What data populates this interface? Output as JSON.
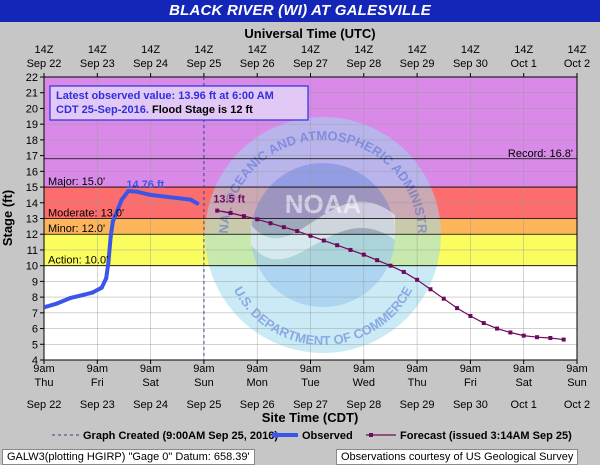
{
  "header": {
    "title": "BLACK RIVER (WI) AT GALESVILLE"
  },
  "info_box": {
    "line1": "Latest observed value: 13.96 ft at 6:00 AM",
    "line2a": "CDT 25-Sep-2016.",
    "line2b": " Flood Stage is 12 ft"
  },
  "footer": {
    "left": "GALW3(plotting HGIRP) \"Gage 0\" Datum: 658.39'",
    "right": "Observations courtesy of US Geological Survey"
  },
  "watermark": {
    "icon": "noaa-logo",
    "top_text": "NATIONAL OCEANIC AND ATMOSPHERIC ADMINISTRATION",
    "bottom_text": "U.S. DEPARTMENT OF COMMERCE",
    "center_text": "NOAA"
  },
  "colors": {
    "title_bar": "#1426b8",
    "major": "#d98ae8",
    "moderate": "#fe6d6d",
    "minor": "#fdb55c",
    "action": "#fbfd5e",
    "normal": "#ffffff",
    "observed": "#3c55e6",
    "forecast": "#6e0a5e",
    "info_text": "#2f2fe0"
  },
  "chart_data": {
    "type": "line",
    "title": "BLACK RIVER (WI) AT GALESVILLE",
    "top_axis_title": "Universal Time (UTC)",
    "xlabel": "Site Time (CDT)",
    "ylabel": "Stage (ft)",
    "ylim": [
      4,
      22
    ],
    "yticks": [
      4,
      5,
      6,
      7,
      8,
      9,
      10,
      11,
      12,
      13,
      14,
      15,
      16,
      17,
      18,
      19,
      20,
      21,
      22
    ],
    "xlim": [
      "2016-09-22 09:00",
      "2016-10-02 09:00"
    ],
    "x_ticks_bottom": [
      {
        "time": "9am",
        "day": "Thu",
        "date": "Sep 22"
      },
      {
        "time": "9am",
        "day": "Fri",
        "date": "Sep 23"
      },
      {
        "time": "9am",
        "day": "Sat",
        "date": "Sep 24"
      },
      {
        "time": "9am",
        "day": "Sun",
        "date": "Sep 25"
      },
      {
        "time": "9am",
        "day": "Mon",
        "date": "Sep 26"
      },
      {
        "time": "9am",
        "day": "Tue",
        "date": "Sep 27"
      },
      {
        "time": "9am",
        "day": "Wed",
        "date": "Sep 28"
      },
      {
        "time": "9am",
        "day": "Thu",
        "date": "Sep 29"
      },
      {
        "time": "9am",
        "day": "Fri",
        "date": "Sep 30"
      },
      {
        "time": "9am",
        "day": "Sat",
        "date": "Oct 1"
      },
      {
        "time": "9am",
        "day": "Sun",
        "date": "Oct 2"
      }
    ],
    "x_ticks_top": [
      {
        "label": "14Z",
        "date": "Sep 22"
      },
      {
        "label": "14Z",
        "date": "Sep 23"
      },
      {
        "label": "14Z",
        "date": "Sep 24"
      },
      {
        "label": "14Z",
        "date": "Sep 25"
      },
      {
        "label": "14Z",
        "date": "Sep 26"
      },
      {
        "label": "14Z",
        "date": "Sep 27"
      },
      {
        "label": "14Z",
        "date": "Sep 28"
      },
      {
        "label": "14Z",
        "date": "Sep 29"
      },
      {
        "label": "14Z",
        "date": "Sep 30"
      },
      {
        "label": "14Z",
        "date": "Oct 1"
      },
      {
        "label": "14Z",
        "date": "Oct 2"
      }
    ],
    "flood_categories": [
      {
        "name": "Major",
        "label": "Major: 15.0'",
        "from": 15,
        "to": 22
      },
      {
        "name": "Moderate",
        "label": "Moderate: 13.0'",
        "from": 13,
        "to": 15
      },
      {
        "name": "Minor",
        "label": "Minor: 12.0'",
        "from": 12,
        "to": 13
      },
      {
        "name": "Action",
        "label": "Action: 10.0'",
        "from": 10,
        "to": 12
      }
    ],
    "record": {
      "label": "Record: 16.8'",
      "value": 16.8
    },
    "graph_created": {
      "x": "2016-09-25 09:00",
      "legend": "Graph Created (9:00AM Sep 25, 2016)"
    },
    "annotations": [
      {
        "text": "14.76 ft",
        "x": "2016-09-23 23:00",
        "y": 14.76,
        "series": "Observed"
      },
      {
        "text": "13.5 ft",
        "x": "2016-09-25 15:00",
        "y": 13.5,
        "series": "Forecast"
      }
    ],
    "series": [
      {
        "name": "Observed",
        "legend": "Observed",
        "points": [
          [
            "2016-09-22 09:00",
            7.35
          ],
          [
            "2016-09-22 15:00",
            7.6
          ],
          [
            "2016-09-22 21:00",
            7.95
          ],
          [
            "2016-09-23 03:00",
            8.15
          ],
          [
            "2016-09-23 07:00",
            8.3
          ],
          [
            "2016-09-23 11:00",
            8.6
          ],
          [
            "2016-09-23 13:00",
            9.2
          ],
          [
            "2016-09-23 14:00",
            10.2
          ],
          [
            "2016-09-23 15:00",
            11.8
          ],
          [
            "2016-09-23 16:00",
            12.8
          ],
          [
            "2016-09-23 18:00",
            13.5
          ],
          [
            "2016-09-23 20:00",
            14.2
          ],
          [
            "2016-09-23 23:00",
            14.75
          ],
          [
            "2016-09-24 03:00",
            14.7
          ],
          [
            "2016-09-24 09:00",
            14.5
          ],
          [
            "2016-09-24 15:00",
            14.4
          ],
          [
            "2016-09-24 21:00",
            14.3
          ],
          [
            "2016-09-25 03:00",
            14.2
          ],
          [
            "2016-09-25 06:00",
            13.96
          ]
        ]
      },
      {
        "name": "Forecast",
        "legend": "Forecast (issued 3:14AM Sep 25)",
        "points": [
          [
            "2016-09-25 15:00",
            13.5
          ],
          [
            "2016-09-25 21:00",
            13.35
          ],
          [
            "2016-09-26 03:00",
            13.15
          ],
          [
            "2016-09-26 09:00",
            12.95
          ],
          [
            "2016-09-26 15:00",
            12.7
          ],
          [
            "2016-09-26 21:00",
            12.45
          ],
          [
            "2016-09-27 03:00",
            12.2
          ],
          [
            "2016-09-27 09:00",
            11.9
          ],
          [
            "2016-09-27 15:00",
            11.6
          ],
          [
            "2016-09-27 21:00",
            11.3
          ],
          [
            "2016-09-28 03:00",
            11.0
          ],
          [
            "2016-09-28 09:00",
            10.7
          ],
          [
            "2016-09-28 15:00",
            10.35
          ],
          [
            "2016-09-28 21:00",
            10.0
          ],
          [
            "2016-09-29 03:00",
            9.6
          ],
          [
            "2016-09-29 09:00",
            9.1
          ],
          [
            "2016-09-29 15:00",
            8.5
          ],
          [
            "2016-09-29 21:00",
            7.9
          ],
          [
            "2016-09-30 03:00",
            7.3
          ],
          [
            "2016-09-30 09:00",
            6.8
          ],
          [
            "2016-09-30 15:00",
            6.35
          ],
          [
            "2016-09-30 21:00",
            6.0
          ],
          [
            "2016-10-01 03:00",
            5.75
          ],
          [
            "2016-10-01 09:00",
            5.55
          ],
          [
            "2016-10-01 15:00",
            5.45
          ],
          [
            "2016-10-01 21:00",
            5.4
          ],
          [
            "2016-10-02 03:00",
            5.3
          ]
        ]
      }
    ]
  }
}
